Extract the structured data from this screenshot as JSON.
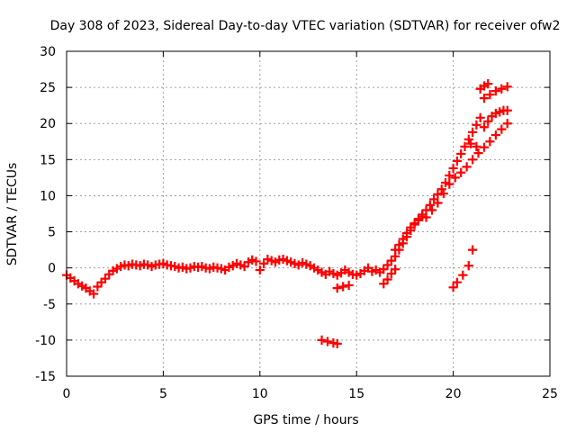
{
  "chart_data": {
    "type": "scatter",
    "title": "Day 308 of 2023, Sidereal Day-to-day VTEC variation (SDTVAR) for receiver ofw2",
    "xlabel": "GPS time / hours",
    "ylabel": "SDTVAR / TECUs",
    "xlim": [
      0,
      25
    ],
    "ylim": [
      -15,
      30
    ],
    "xticks": [
      "0",
      "5",
      "10",
      "15",
      "20",
      "25"
    ],
    "yticks": [
      "-15",
      "-10",
      "-5",
      "0",
      "5",
      "10",
      "15",
      "20",
      "25",
      "30"
    ],
    "grid": true,
    "marker": "+",
    "series_color": "#ff0000",
    "series": [
      {
        "name": "SDTVAR",
        "x": [
          0.0,
          0.2,
          0.4,
          0.6,
          0.8,
          1.0,
          1.2,
          1.4,
          1.6,
          1.8,
          2.0,
          2.2,
          2.4,
          2.6,
          2.8,
          3.0,
          3.2,
          3.4,
          3.6,
          3.8,
          4.0,
          4.2,
          4.4,
          4.6,
          4.8,
          5.0,
          5.2,
          5.4,
          5.6,
          5.8,
          6.0,
          6.2,
          6.4,
          6.6,
          6.8,
          7.0,
          7.2,
          7.4,
          7.6,
          7.8,
          8.0,
          8.2,
          8.4,
          8.6,
          8.8,
          9.0,
          9.2,
          9.4,
          9.6,
          9.8,
          10.0,
          10.2,
          10.4,
          10.6,
          10.8,
          11.0,
          11.2,
          11.4,
          11.6,
          11.8,
          12.0,
          12.2,
          12.4,
          12.6,
          12.8,
          13.0,
          13.2,
          13.4,
          13.6,
          13.8,
          14.0,
          14.2,
          14.4,
          14.6,
          14.8,
          15.0,
          15.2,
          15.4,
          15.6,
          15.8,
          16.0,
          16.2,
          16.4,
          16.6,
          16.8,
          17.0,
          17.2,
          17.4,
          17.6,
          17.8,
          18.0,
          18.2,
          18.4,
          18.6,
          18.8,
          19.0,
          19.2,
          19.4,
          19.6,
          19.8,
          20.0,
          20.2,
          20.4,
          20.6,
          20.8,
          21.0,
          21.2,
          21.4,
          21.6,
          21.8,
          22.0,
          22.2,
          22.4,
          22.6,
          22.8,
          13.2,
          13.5,
          13.8,
          14.0,
          20.0,
          20.2,
          20.5,
          20.8,
          21.0,
          18.6,
          18.9,
          19.2,
          19.5,
          19.8,
          20.1,
          20.4,
          20.7,
          21.0,
          21.3,
          21.6,
          21.9,
          22.2,
          22.5,
          22.8,
          21.6,
          21.9,
          22.2,
          22.5,
          22.8,
          21.4,
          21.6,
          21.8,
          20.9,
          21.2,
          17.0,
          17.2,
          17.4,
          17.6,
          17.8,
          18.0,
          18.2,
          18.4,
          16.4,
          16.6,
          16.8,
          17.0,
          14.0,
          14.3,
          14.6
        ],
        "y": [
          -1.0,
          -1.4,
          -1.8,
          -2.2,
          -2.5,
          -2.8,
          -3.2,
          -3.6,
          -2.6,
          -2.0,
          -1.5,
          -0.9,
          -0.4,
          -0.1,
          0.2,
          0.4,
          0.3,
          0.5,
          0.4,
          0.3,
          0.5,
          0.4,
          0.2,
          0.4,
          0.5,
          0.6,
          0.4,
          0.3,
          0.2,
          0.0,
          0.1,
          -0.1,
          0.0,
          0.2,
          0.1,
          0.2,
          0.0,
          -0.1,
          0.1,
          0.0,
          -0.1,
          -0.3,
          0.1,
          0.3,
          0.6,
          0.4,
          0.2,
          0.8,
          1.1,
          0.9,
          -0.3,
          0.6,
          1.2,
          1.0,
          0.8,
          1.1,
          1.2,
          1.0,
          0.8,
          0.6,
          0.4,
          0.7,
          0.5,
          0.3,
          0.0,
          -0.3,
          -0.6,
          -0.9,
          -0.5,
          -0.8,
          -1.0,
          -0.7,
          -0.3,
          -0.6,
          -0.9,
          -1.0,
          -0.8,
          -0.4,
          0.0,
          -0.5,
          -0.3,
          -0.6,
          -0.2,
          0.4,
          1.0,
          1.6,
          2.5,
          3.4,
          4.3,
          5.2,
          6.0,
          6.8,
          7.4,
          8.0,
          8.7,
          9.5,
          10.2,
          10.9,
          11.8,
          12.8,
          13.8,
          14.8,
          15.8,
          16.8,
          17.8,
          18.8,
          19.8,
          20.8,
          19.5,
          20.3,
          21.0,
          21.4,
          21.6,
          21.8,
          21.8,
          -10.0,
          -10.2,
          -10.4,
          -10.5,
          -2.7,
          -2.0,
          -1.0,
          0.3,
          2.5,
          7.0,
          8.0,
          9.0,
          10.3,
          11.6,
          12.5,
          13.2,
          14.0,
          15.0,
          15.9,
          16.7,
          17.5,
          18.4,
          19.2,
          20.0,
          23.5,
          24.0,
          24.5,
          24.8,
          25.1,
          24.8,
          25.2,
          25.5,
          17.2,
          16.8,
          2.5,
          3.2,
          4.0,
          4.8,
          5.6,
          6.2,
          6.6,
          7.1,
          -2.2,
          -1.6,
          -0.8,
          -0.2,
          -2.8,
          -2.6,
          -2.4
        ]
      }
    ]
  }
}
